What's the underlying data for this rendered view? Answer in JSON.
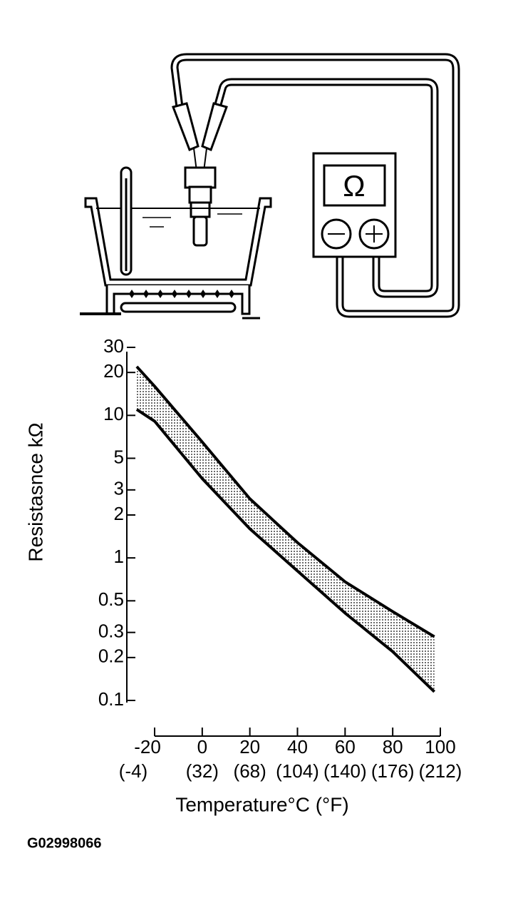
{
  "illustration": {
    "meter_symbol": "Ω"
  },
  "chart_data": {
    "type": "band",
    "y_label": "Resistasnce kΩ",
    "x_label": "Temperature°C (°F)",
    "x_f_labels": [
      "(-4)",
      "(32)",
      "(68)",
      "(104)",
      "(140)",
      "(176)",
      "(212)"
    ],
    "x": [
      -27.5,
      -20,
      0,
      20,
      40,
      60,
      80,
      97.5
    ],
    "series": [
      {
        "color": "#000000",
        "values": [
          22,
          16,
          6.5,
          2.6,
          1.28,
          0.68,
          0.42,
          0.28
        ]
      },
      {
        "color": "#000000",
        "values": [
          11,
          9.1,
          3.6,
          1.6,
          0.81,
          0.41,
          0.22,
          0.115
        ]
      }
    ],
    "log_y": true,
    "xlim": [
      -20,
      100
    ],
    "xticks": [
      -20,
      0,
      20,
      40,
      60,
      80,
      100
    ],
    "ylim": [
      0.1,
      30
    ],
    "yticks": [
      0.1,
      0.2,
      0.3,
      0.5,
      1,
      2,
      3,
      5,
      10,
      20,
      30
    ]
  },
  "footer": {
    "code": "G02998066"
  }
}
